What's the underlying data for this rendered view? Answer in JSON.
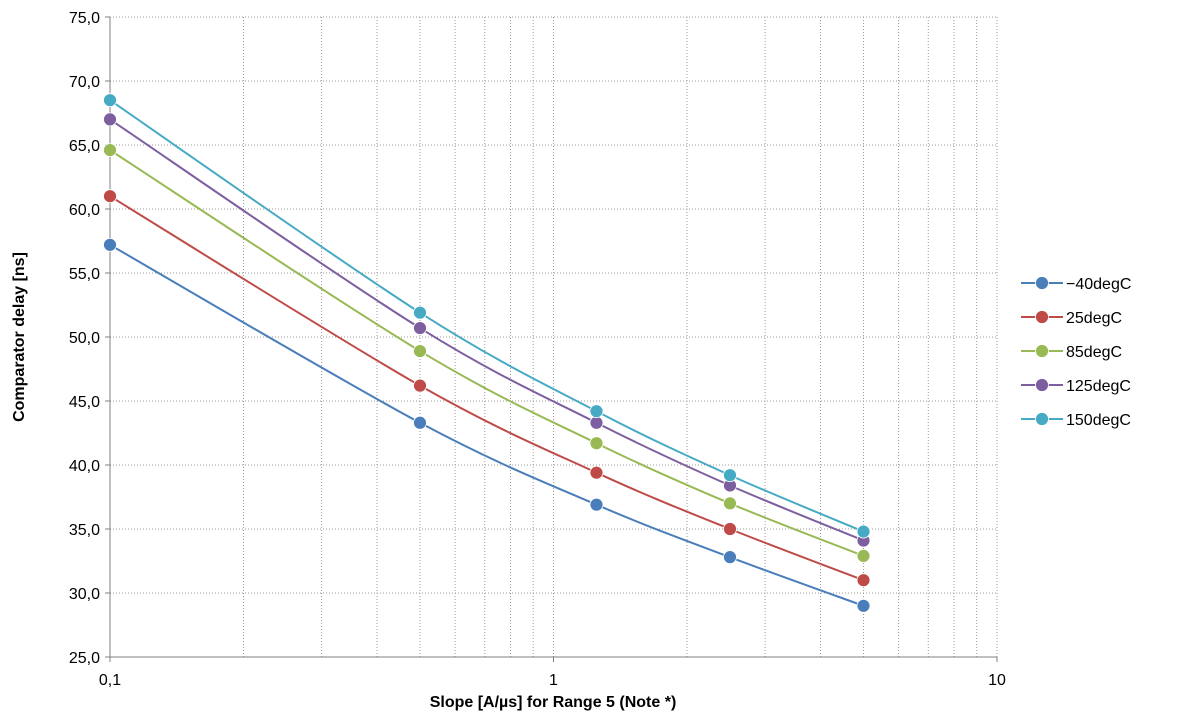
{
  "chart_data": {
    "type": "line",
    "title": "",
    "xlabel": "Slope [A/µs] for Range 5 (Note *)",
    "ylabel": "Comparator delay [ns]",
    "x_scale": "log",
    "xlim": [
      0.1,
      10
    ],
    "ylim": [
      25,
      75
    ],
    "x_ticks": [
      0.1,
      1,
      10
    ],
    "x_tick_labels": [
      "0,1",
      "1",
      "10"
    ],
    "y_ticks": [
      25,
      30,
      35,
      40,
      45,
      50,
      55,
      60,
      65,
      70,
      75
    ],
    "y_tick_labels": [
      "25,0",
      "30,0",
      "35,0",
      "40,0",
      "45,0",
      "50,0",
      "55,0",
      "60,0",
      "65,0",
      "70,0",
      "75,0"
    ],
    "grid": true,
    "legend_position": "right",
    "x": [
      0.1,
      0.5,
      1.25,
      2.5,
      5
    ],
    "series": [
      {
        "name": "−40degC",
        "color": "#4a7ebb",
        "values": [
          57.2,
          43.3,
          36.9,
          32.8,
          29.0
        ]
      },
      {
        "name": "25degC",
        "color": "#be4b48",
        "values": [
          61.0,
          46.2,
          39.4,
          35.0,
          31.0
        ]
      },
      {
        "name": "85degC",
        "color": "#98b954",
        "values": [
          64.6,
          48.9,
          41.7,
          37.0,
          32.9
        ]
      },
      {
        "name": "125degC",
        "color": "#7d5fa0",
        "values": [
          67.0,
          50.7,
          43.3,
          38.4,
          34.1
        ]
      },
      {
        "name": "150degC",
        "color": "#46aac5",
        "values": [
          68.5,
          51.9,
          44.2,
          39.2,
          34.8
        ]
      }
    ]
  }
}
